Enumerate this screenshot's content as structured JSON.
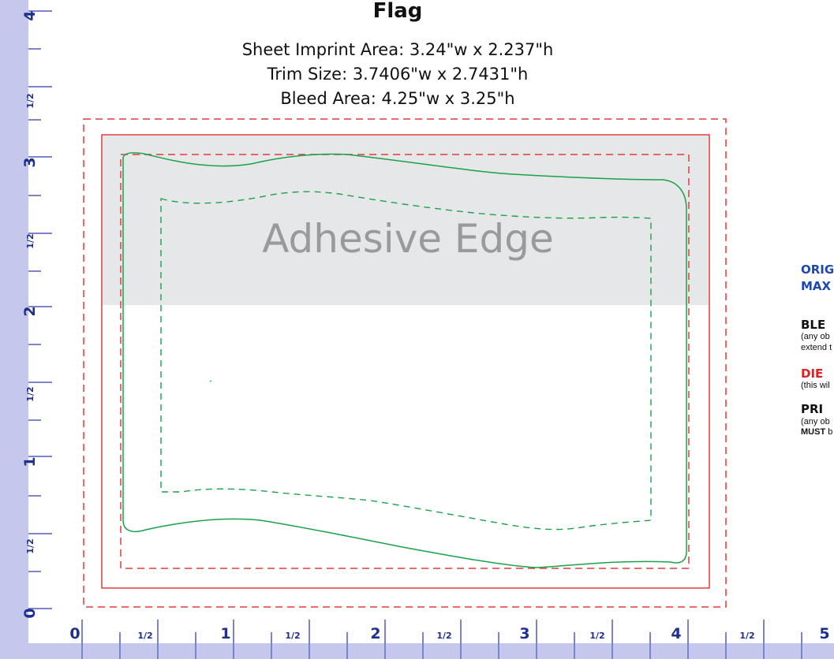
{
  "title": "Flag",
  "specs": {
    "imprint": "Sheet Imprint Area:  3.24\"w x 2.237\"h",
    "trim": "Trim Size:  3.7406\"w x 2.7431\"h",
    "bleed": "Bleed Area:  4.25\"w x 3.25\"h"
  },
  "adhesive_label": "Adhesive Edge",
  "ruler": {
    "vertical_numbers": [
      "4",
      "3",
      "2",
      "1",
      "0"
    ],
    "horizontal_numbers": [
      "0",
      "1",
      "2",
      "3",
      "4",
      "5"
    ],
    "half_label": "1/2"
  },
  "legend": {
    "line1": "ORIG",
    "line2": "MAX",
    "bleed_head": "BLE",
    "bleed_note1": "(any ob",
    "bleed_note2": "extend t",
    "die_head": "DIE",
    "die_note": "(this wil",
    "print_head": "PRI",
    "print_note1": "(any ob",
    "print_note2_bold": "MUST",
    "print_note2_rest": " b"
  },
  "colors": {
    "ruler_bg": "#c5c8ec",
    "ruler_text": "#1e2f8f",
    "bleed_line": "#e23b3b",
    "trim_line": "#e23b3b",
    "die_line": "#1aa24a",
    "adhesive_fill": "#e6e7e8",
    "legend_blue": "#1e48b0",
    "legend_red": "#e02020"
  }
}
